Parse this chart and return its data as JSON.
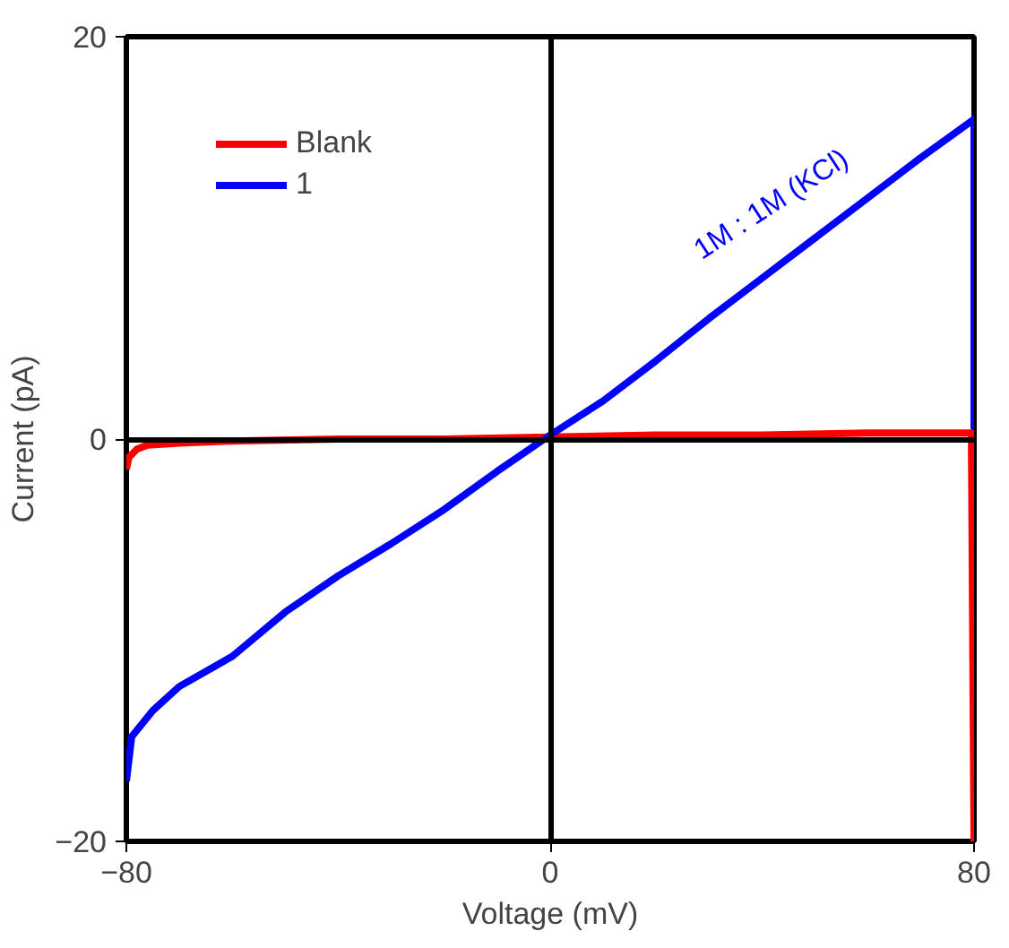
{
  "chart_data": {
    "type": "line",
    "xlabel": "Voltage (mV)",
    "ylabel": "Current (pA)",
    "xlim": [
      -80,
      80
    ],
    "ylim": [
      -20,
      20
    ],
    "xticks": [
      -80,
      0,
      80
    ],
    "yticks": [
      -20,
      0,
      20
    ],
    "legend": "top left",
    "marker": "none",
    "line_style": "solid",
    "series": [
      {
        "name": "Blank",
        "color": "#ff0000",
        "x": [
          -80,
          -79.5,
          -78,
          -76,
          -70,
          -60,
          -40,
          -20,
          0,
          20,
          40,
          60,
          79.5,
          80
        ],
        "values": [
          -1.5,
          -0.9,
          -0.5,
          -0.3,
          -0.2,
          -0.1,
          0,
          0,
          0.1,
          0.2,
          0.2,
          0.3,
          0.3,
          -20
        ]
      },
      {
        "name": "1",
        "color": "#0000ff",
        "x": [
          -80,
          -79,
          -75,
          -70,
          -60,
          -50,
          -40,
          -30,
          -20,
          -10,
          0,
          10,
          20,
          30,
          40,
          50,
          60,
          70,
          79.5,
          80,
          80
        ],
        "values": [
          -17,
          -14.8,
          -13.5,
          -12.3,
          -10.8,
          -8.6,
          -6.8,
          -5.2,
          -3.5,
          -1.6,
          0.2,
          1.9,
          3.9,
          6,
          8,
          10,
          12,
          14,
          15.8,
          15.9,
          0.5
        ]
      }
    ],
    "annotations": [
      "1M : 1M (KCl)"
    ]
  }
}
